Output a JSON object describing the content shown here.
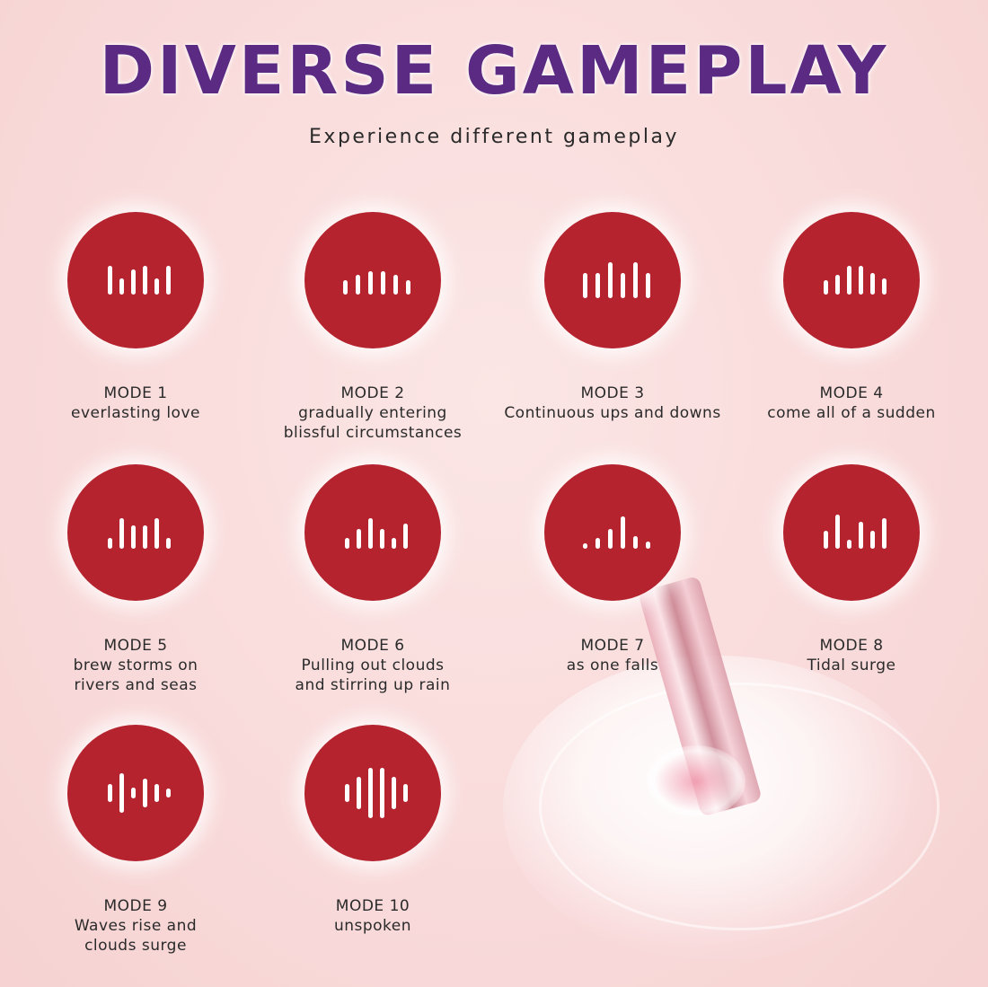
{
  "header": {
    "title": "DIVERSE GAMEPLAY",
    "subtitle": "Experience different gameplay"
  },
  "colors": {
    "title": "#5b2a82",
    "circle": "#b5232f",
    "background": "#f9dcdc"
  },
  "modes": [
    {
      "label": "MODE 1",
      "desc": "everlasting love",
      "icon": "equalizer-icon"
    },
    {
      "label": "MODE 2",
      "desc": "gradually entering\nblissful circumstances",
      "icon": "equalizer-icon"
    },
    {
      "label": "MODE 3",
      "desc": "Continuous ups and downs",
      "icon": "equalizer-icon"
    },
    {
      "label": "MODE 4",
      "desc": "come all of a sudden",
      "icon": "equalizer-icon"
    },
    {
      "label": "MODE 5",
      "desc": "brew storms on\nrivers and seas",
      "icon": "equalizer-icon"
    },
    {
      "label": "MODE 6",
      "desc": "Pulling out clouds\nand stirring up rain",
      "icon": "equalizer-icon"
    },
    {
      "label": "MODE 7",
      "desc": "as one falls",
      "icon": "equalizer-icon"
    },
    {
      "label": "MODE 8",
      "desc": "Tidal surge",
      "icon": "equalizer-icon"
    },
    {
      "label": "MODE 9",
      "desc": "Waves rise and\nclouds surge",
      "icon": "sound-wave-icon"
    },
    {
      "label": "MODE 10",
      "desc": "unspoken",
      "icon": "sound-wave-icon"
    }
  ]
}
